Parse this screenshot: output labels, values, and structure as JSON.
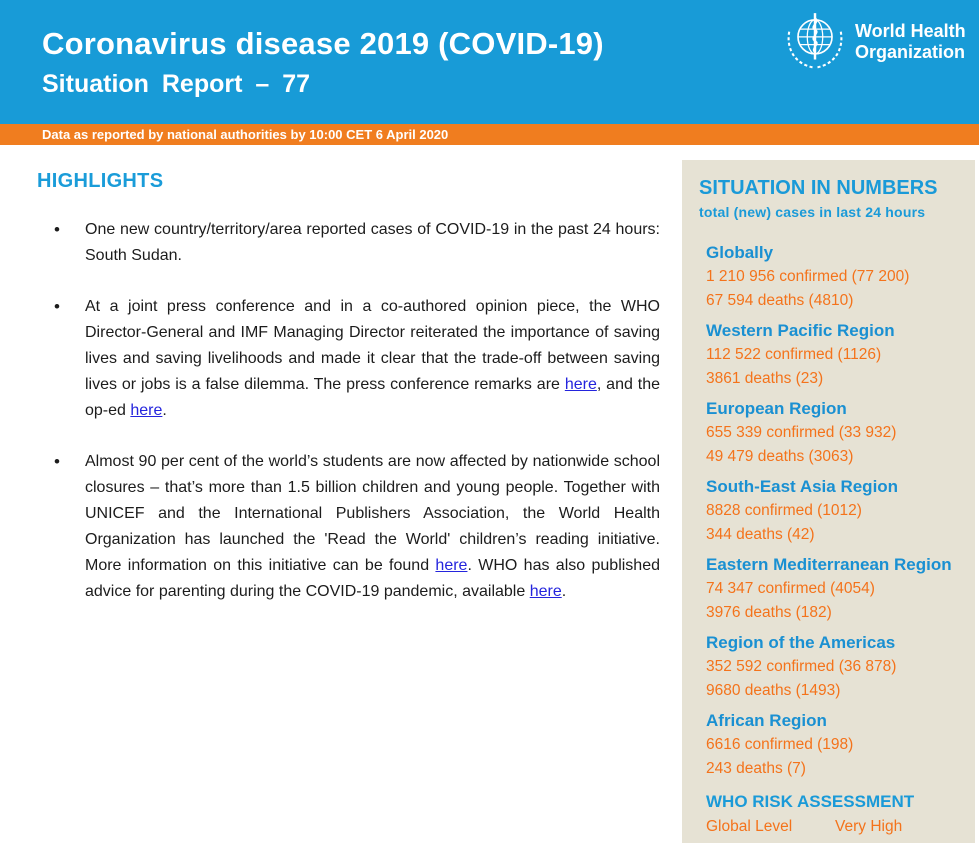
{
  "header": {
    "title": "Coronavirus disease 2019 (COVID-19)",
    "subtitle": "Situation Report – 77",
    "logo_line1": "World Health",
    "logo_line2": "Organization"
  },
  "banner": {
    "text": "Data as reported by national authorities by 10:00 CET 6 April 2020"
  },
  "highlights": {
    "heading": "HIGHLIGHTS",
    "bullets": [
      [
        {
          "t": "One new country/territory/area reported cases of COVID-19 in the past 24 hours: South Sudan."
        }
      ],
      [
        {
          "t": "At a joint press conference and in a co-authored opinion piece, the WHO Director-General and IMF Managing Director reiterated the importance of saving lives and saving livelihoods and made it clear that the trade-off between saving lives or jobs is a false dilemma. The press conference remarks are "
        },
        {
          "t": "here",
          "link": true
        },
        {
          "t": ", and the op-ed "
        },
        {
          "t": "here",
          "link": true
        },
        {
          "t": "."
        }
      ],
      [
        {
          "t": "Almost 90 per cent of the world’s students are now affected by nationwide school closures – that’s more than 1.5 billion children and young people. Together with UNICEF and the International Publishers Association, the World Health Organization has launched the 'Read the World' children’s reading initiative. More information on this initiative can be found "
        },
        {
          "t": "here",
          "link": true
        },
        {
          "t": ". WHO has also published advice for parenting during the COVID-19 pandemic, available "
        },
        {
          "t": "here",
          "link": true
        },
        {
          "t": "."
        }
      ]
    ]
  },
  "sidebar": {
    "title": "SITUATION IN NUMBERS",
    "subtitle": "total (new) cases in last 24 hours",
    "regions": [
      {
        "name": "Globally",
        "confirmed": "1 210 956 confirmed (77 200)",
        "deaths": "67 594 deaths (4810)"
      },
      {
        "name": "Western Pacific Region",
        "confirmed": "112 522 confirmed (1126)",
        "deaths": "3861 deaths (23)"
      },
      {
        "name": "European Region",
        "confirmed": "655 339 confirmed (33 932)",
        "deaths": "49 479 deaths (3063)"
      },
      {
        "name": "South-East Asia Region",
        "confirmed": "8828 confirmed (1012)",
        "deaths": "344 deaths (42)"
      },
      {
        "name": "Eastern Mediterranean Region",
        "confirmed": "74 347 confirmed (4054)",
        "deaths": "3976 deaths (182)"
      },
      {
        "name": "Region of the Americas",
        "confirmed": "352 592 confirmed (36 878)",
        "deaths": "9680 deaths (1493)"
      },
      {
        "name": "African Region",
        "confirmed": "6616 confirmed (198)",
        "deaths": "243 deaths (7)"
      }
    ],
    "risk": {
      "heading": "WHO RISK ASSESSMENT",
      "label": "Global Level",
      "value": "Very High"
    }
  },
  "colors": {
    "header_blue": "#189bd7",
    "banner_orange": "#f07d1f",
    "accent_blue": "#1a9cd9",
    "sidebar_bg": "#e6e2d4",
    "stat_orange": "#f4731b",
    "link_blue": "#2424dd"
  }
}
